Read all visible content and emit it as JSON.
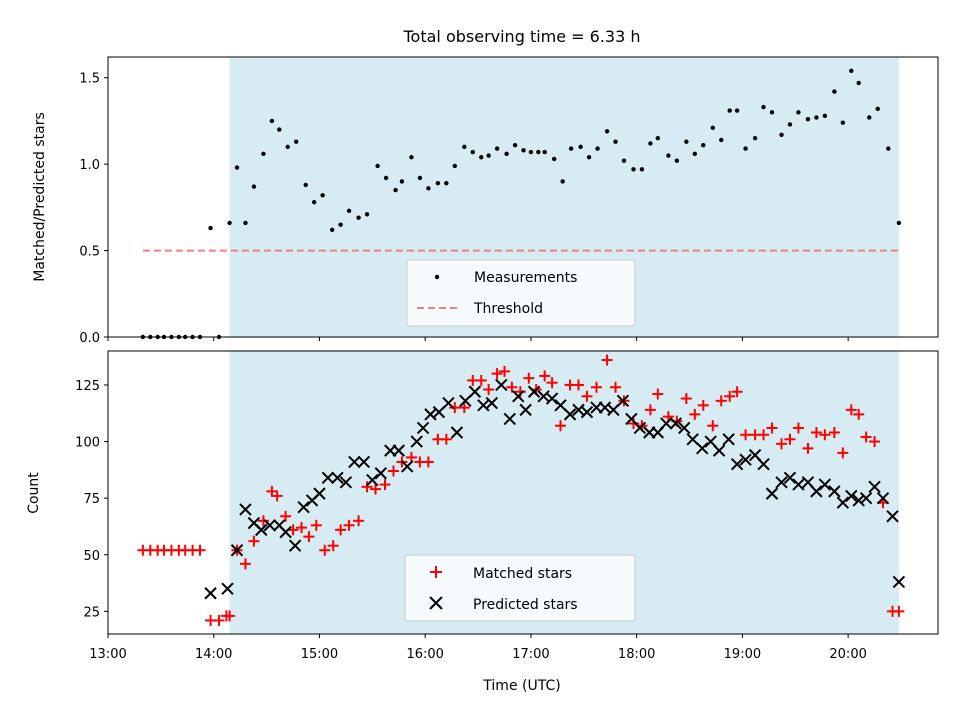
{
  "figure": {
    "title": "Total observing time = 6.33 h"
  },
  "colors": {
    "measurements": "#000000",
    "threshold": "#f08080",
    "matched": "#ff0000",
    "predicted": "#000000",
    "observing_span": "#add8e6"
  },
  "chart_data": [
    {
      "type": "scatter",
      "panel": "top",
      "title": "Total observing time = 6.33 h",
      "xlabel": "",
      "ylabel": "Matched/Predicted stars",
      "xlim": [
        13.0,
        20.85
      ],
      "ylim": [
        0.0,
        1.62
      ],
      "yticks": [
        0.0,
        0.5,
        1.0,
        1.5
      ],
      "ytick_labels": [
        "0.0",
        "0.5",
        "1.0",
        "1.5"
      ],
      "observing_span": [
        14.15,
        20.48
      ],
      "legend": {
        "placement": "lower center",
        "entries": [
          "Measurements",
          "Threshold"
        ]
      },
      "threshold": {
        "name": "Threshold",
        "y": 0.5,
        "x": [
          13.33,
          20.48
        ]
      },
      "series": [
        {
          "name": "Measurements",
          "marker": "dot",
          "x": [
            13.33,
            13.4,
            13.47,
            13.53,
            13.6,
            13.67,
            13.73,
            13.8,
            13.87,
            13.97,
            14.05,
            14.15,
            14.22,
            14.3,
            14.38,
            14.47,
            14.55,
            14.62,
            14.7,
            14.78,
            14.87,
            14.95,
            15.03,
            15.12,
            15.2,
            15.28,
            15.37,
            15.45,
            15.55,
            15.63,
            15.72,
            15.78,
            15.87,
            15.95,
            16.03,
            16.12,
            16.2,
            16.28,
            16.37,
            16.45,
            16.53,
            16.6,
            16.68,
            16.77,
            16.85,
            16.93,
            17.0,
            17.07,
            17.13,
            17.22,
            17.3,
            17.38,
            17.47,
            17.55,
            17.63,
            17.72,
            17.8,
            17.88,
            17.97,
            18.05,
            18.13,
            18.2,
            18.3,
            18.38,
            18.47,
            18.55,
            18.63,
            18.72,
            18.8,
            18.88,
            18.95,
            19.03,
            19.12,
            19.2,
            19.28,
            19.37,
            19.45,
            19.53,
            19.62,
            19.7,
            19.78,
            19.87,
            19.95,
            20.03,
            20.1,
            20.2,
            20.28,
            20.38,
            20.48
          ],
          "y": [
            0.0,
            0.0,
            0.0,
            0.0,
            0.0,
            0.0,
            0.0,
            0.0,
            0.0,
            0.63,
            0.0,
            0.66,
            0.98,
            0.66,
            0.87,
            1.06,
            1.25,
            1.2,
            1.1,
            1.13,
            0.88,
            0.78,
            0.82,
            0.62,
            0.65,
            0.73,
            0.69,
            0.71,
            0.99,
            0.92,
            0.85,
            0.9,
            1.04,
            0.92,
            0.86,
            0.89,
            0.89,
            0.99,
            1.1,
            1.07,
            1.04,
            1.05,
            1.09,
            1.06,
            1.11,
            1.08,
            1.07,
            1.07,
            1.07,
            1.03,
            0.9,
            1.09,
            1.1,
            1.04,
            1.09,
            1.19,
            1.13,
            1.02,
            0.97,
            0.97,
            1.12,
            1.15,
            1.05,
            1.02,
            1.13,
            1.06,
            1.11,
            1.21,
            1.14,
            1.31,
            1.31,
            1.09,
            1.15,
            1.33,
            1.3,
            1.17,
            1.23,
            1.3,
            1.26,
            1.27,
            1.28,
            1.42,
            1.24,
            1.54,
            1.47,
            1.27,
            1.32,
            1.09,
            0.66
          ]
        }
      ]
    },
    {
      "type": "scatter",
      "panel": "bottom",
      "title": "",
      "xlabel": "Time (UTC)",
      "ylabel": "Count",
      "xlim": [
        13.0,
        20.85
      ],
      "ylim": [
        15,
        140
      ],
      "yticks": [
        25,
        50,
        75,
        100,
        125
      ],
      "ytick_labels": [
        "25",
        "50",
        "75",
        "100",
        "125"
      ],
      "xticks": [
        13,
        14,
        15,
        16,
        17,
        18,
        19,
        20
      ],
      "xtick_labels": [
        "13:00",
        "14:00",
        "15:00",
        "16:00",
        "17:00",
        "18:00",
        "19:00",
        "20:00"
      ],
      "observing_span": [
        14.15,
        20.48
      ],
      "legend": {
        "placement": "lower center",
        "entries": [
          "Matched stars",
          "Predicted stars"
        ]
      },
      "series": [
        {
          "name": "Matched stars",
          "marker": "plus",
          "x": [
            13.33,
            13.4,
            13.47,
            13.53,
            13.6,
            13.67,
            13.73,
            13.8,
            13.87,
            13.97,
            14.05,
            14.12,
            14.15,
            14.22,
            14.3,
            14.38,
            14.47,
            14.55,
            14.6,
            14.68,
            14.75,
            14.83,
            14.9,
            14.97,
            15.05,
            15.13,
            15.2,
            15.28,
            15.37,
            15.45,
            15.53,
            15.62,
            15.7,
            15.78,
            15.87,
            15.95,
            16.03,
            16.12,
            16.2,
            16.28,
            16.37,
            16.45,
            16.53,
            16.6,
            16.68,
            16.75,
            16.82,
            16.9,
            16.98,
            17.05,
            17.13,
            17.2,
            17.28,
            17.37,
            17.45,
            17.53,
            17.62,
            17.72,
            17.8,
            17.88,
            17.97,
            18.05,
            18.13,
            18.2,
            18.3,
            18.38,
            18.47,
            18.55,
            18.63,
            18.72,
            18.8,
            18.88,
            18.95,
            19.03,
            19.12,
            19.2,
            19.28,
            19.37,
            19.45,
            19.53,
            19.62,
            19.7,
            19.78,
            19.87,
            19.95,
            20.03,
            20.1,
            20.17,
            20.25,
            20.33,
            20.42,
            20.48
          ],
          "y": [
            52,
            52,
            52,
            52,
            52,
            52,
            52,
            52,
            52,
            21,
            21,
            23,
            23,
            52,
            46,
            56,
            65,
            78,
            76,
            67,
            61,
            62,
            58,
            63,
            52,
            54,
            61,
            63,
            65,
            80,
            79,
            81,
            87,
            91,
            93,
            91,
            91,
            101,
            101,
            115,
            115,
            127,
            127,
            123,
            130,
            131,
            124,
            122,
            128,
            123,
            129,
            126,
            107,
            125,
            125,
            120,
            124,
            136,
            124,
            118,
            108,
            107,
            114,
            121,
            111,
            109,
            119,
            112,
            116,
            107,
            118,
            120,
            122,
            103,
            103,
            103,
            106,
            99,
            101,
            106,
            97,
            104,
            103,
            104,
            95,
            114,
            112,
            102,
            100,
            73,
            25,
            25
          ]
        },
        {
          "name": "Predicted stars",
          "marker": "x",
          "x": [
            13.97,
            14.13,
            14.22,
            14.3,
            14.38,
            14.45,
            14.53,
            14.62,
            14.68,
            14.77,
            14.85,
            14.93,
            15.0,
            15.08,
            15.17,
            15.25,
            15.33,
            15.42,
            15.5,
            15.58,
            15.67,
            15.75,
            15.83,
            15.92,
            15.98,
            16.05,
            16.13,
            16.22,
            16.3,
            16.38,
            16.47,
            16.55,
            16.63,
            16.72,
            16.8,
            16.88,
            16.95,
            17.03,
            17.12,
            17.2,
            17.28,
            17.37,
            17.45,
            17.53,
            17.62,
            17.7,
            17.78,
            17.87,
            17.95,
            18.03,
            18.12,
            18.2,
            18.28,
            18.37,
            18.45,
            18.53,
            18.62,
            18.7,
            18.78,
            18.87,
            18.95,
            19.03,
            19.12,
            19.2,
            19.28,
            19.37,
            19.45,
            19.53,
            19.62,
            19.7,
            19.78,
            19.87,
            19.95,
            20.03,
            20.1,
            20.17,
            20.25,
            20.33,
            20.42,
            20.48
          ],
          "y": [
            33,
            35,
            52,
            70,
            64,
            61,
            63,
            63,
            60,
            54,
            71,
            74,
            77,
            84,
            84,
            82,
            91,
            91,
            83,
            86,
            96,
            96,
            89,
            100,
            106,
            112,
            113,
            117,
            104,
            118,
            122,
            116,
            117,
            125,
            110,
            120,
            114,
            122,
            120,
            119,
            116,
            112,
            114,
            113,
            115,
            115,
            114,
            118,
            110,
            106,
            104,
            104,
            108,
            108,
            106,
            101,
            97,
            100,
            96,
            101,
            90,
            92,
            94,
            90,
            77,
            82,
            84,
            81,
            82,
            78,
            81,
            78,
            73,
            76,
            74,
            75,
            80,
            75,
            67,
            38
          ]
        }
      ]
    }
  ]
}
